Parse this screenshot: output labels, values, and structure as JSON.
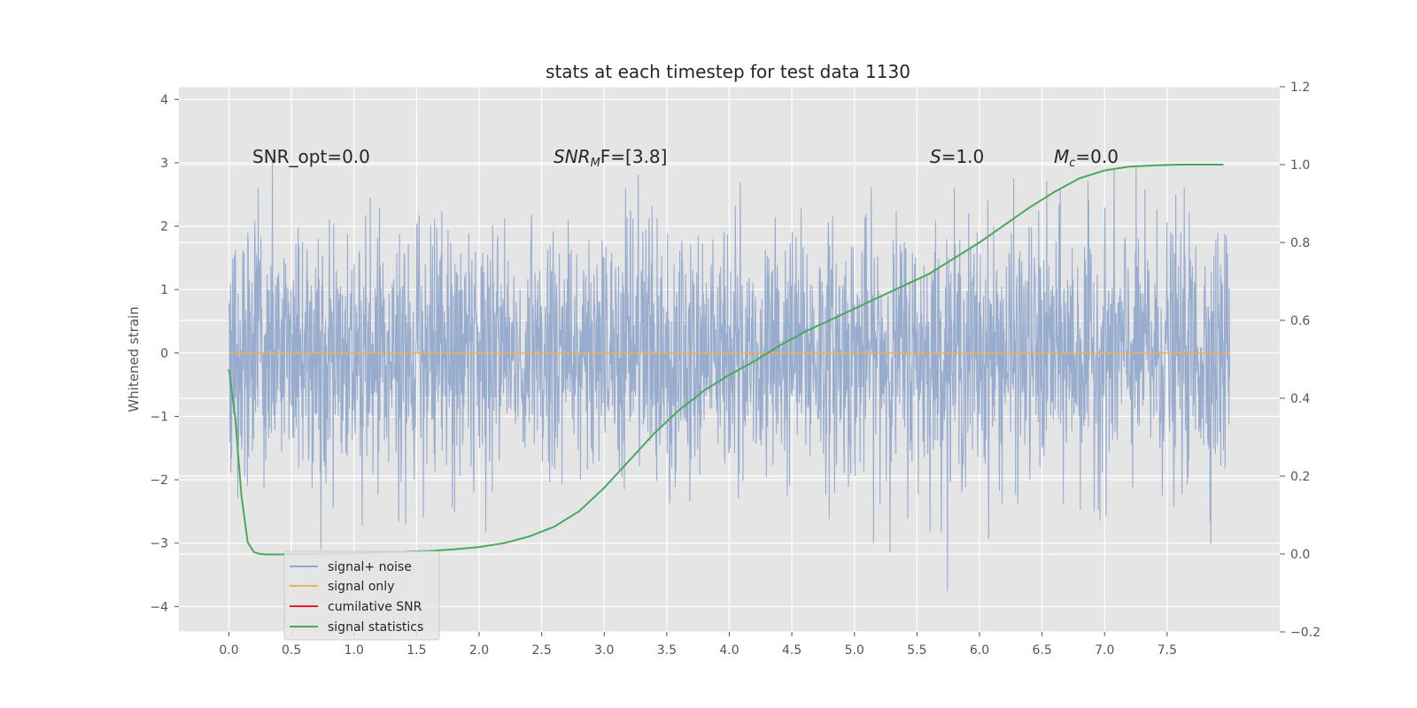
{
  "chart_data": {
    "type": "line",
    "title": "stats at each timestep for test data 1130",
    "ylabel": "Whitened strain",
    "xlabel": "",
    "x_ticks": [
      "0.0",
      "0.5",
      "1.0",
      "1.5",
      "2.0",
      "2.5",
      "3.0",
      "3.5",
      "4.0",
      "4.5",
      "5.0",
      "5.5",
      "6.0",
      "6.5",
      "7.0",
      "7.5"
    ],
    "y_left_ticks": [
      "4",
      "3",
      "2",
      "1",
      "0",
      "−1",
      "−2",
      "−3",
      "−4"
    ],
    "y_right_ticks": [
      "1.2",
      "1.0",
      "0.8",
      "0.6",
      "0.4",
      "0.2",
      "0.0",
      "−0.2"
    ],
    "xlim": [
      -0.4,
      8.4
    ],
    "ylim_left": [
      -4.4,
      4.2
    ],
    "ylim_right": [
      -0.2,
      1.2
    ],
    "grid": true,
    "legend_position": "lower-left",
    "annotations": {
      "snr_opt": "SNR_opt=0.0",
      "snr_mf_base": "SNR",
      "snr_mf_sub": "M",
      "snr_mf_tail": "F=[3.8]",
      "s_var": "S",
      "s_val": "=1.0",
      "mc_base": "M",
      "mc_sub": "c",
      "mc_val": "=0.0"
    },
    "series": [
      {
        "name": "signal+ noise",
        "color": "#94a9cc",
        "description_of_values": "whitened strain noise, x from 0.0 to 8.0, values within about -4.0 to 3.9",
        "x_range": [
          0.0,
          8.0
        ],
        "envelope_peaks": [
          3.6,
          3.3,
          3.5,
          3.4,
          3.3,
          3.3,
          3.7,
          3.9,
          3.8,
          3.3,
          3.4,
          3.1
        ],
        "envelope_troughs": [
          -3.1,
          -3.4,
          -3.2,
          -3.1,
          -3.6,
          -4.0,
          -3.5,
          -3.2
        ]
      },
      {
        "name": "signal only",
        "color": "#e8b35b",
        "x": [
          0.0,
          8.0
        ],
        "y": [
          0.0,
          0.0
        ]
      },
      {
        "name": "cumilative SNR",
        "color": "#e2211c",
        "x": [],
        "y": []
      },
      {
        "name": "signal statistics",
        "color": "#4aa85e",
        "axis": "right",
        "x": [
          0.0,
          0.05,
          0.1,
          0.15,
          0.2,
          0.25,
          0.3,
          0.4,
          0.6,
          0.8,
          1.0,
          1.2,
          1.4,
          1.6,
          1.8,
          2.0,
          2.2,
          2.4,
          2.6,
          2.8,
          3.0,
          3.2,
          3.4,
          3.6,
          3.8,
          4.0,
          4.2,
          4.4,
          4.6,
          4.8,
          5.0,
          5.2,
          5.4,
          5.6,
          5.8,
          6.0,
          6.2,
          6.4,
          6.6,
          6.8,
          7.0,
          7.2,
          7.4,
          7.6,
          7.95
        ],
        "y": [
          0.475,
          0.35,
          0.15,
          0.03,
          0.005,
          0.0,
          -0.001,
          -0.001,
          0.0,
          0.001,
          0.002,
          0.004,
          0.006,
          0.008,
          0.012,
          0.018,
          0.028,
          0.045,
          0.07,
          0.11,
          0.17,
          0.24,
          0.31,
          0.37,
          0.42,
          0.46,
          0.495,
          0.535,
          0.57,
          0.6,
          0.63,
          0.66,
          0.69,
          0.72,
          0.76,
          0.8,
          0.845,
          0.89,
          0.93,
          0.965,
          0.985,
          0.995,
          0.998,
          1.0,
          1.0
        ]
      }
    ]
  }
}
